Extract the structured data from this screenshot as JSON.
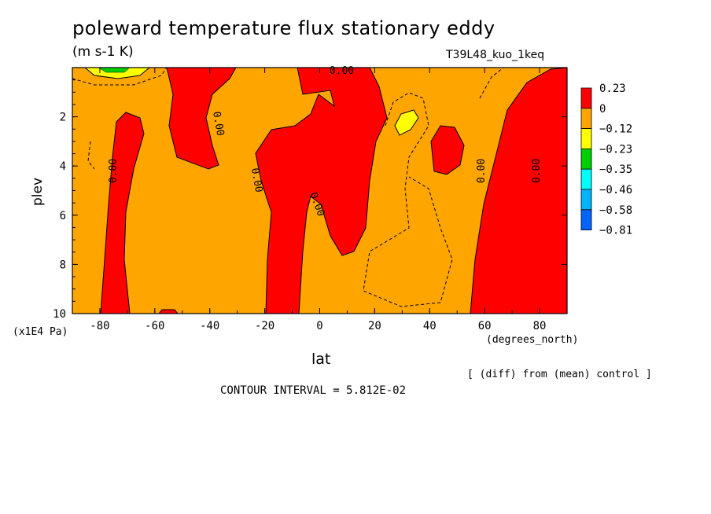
{
  "chart_data": {
    "type": "contour",
    "title": "poleward temperature flux stationary eddy",
    "units": "(m s-1 K)",
    "run_id": "T39L48_kuo_1keq",
    "xlabel": "lat",
    "xunit": "(degrees_north)",
    "ylabel": "plev",
    "yunit": "(x1E4 Pa)",
    "xlim": [
      -90,
      90
    ],
    "ylim": [
      10,
      0
    ],
    "x_ticks": [
      -80,
      -60,
      -40,
      -20,
      0,
      20,
      40,
      60,
      80
    ],
    "y_ticks": [
      2,
      4,
      6,
      8,
      10
    ],
    "legend_levels": [
      {
        "label": "0.23",
        "color": "#ff0000"
      },
      {
        "label": "0",
        "color": "#ffa500"
      },
      {
        "label": "−0.12",
        "color": "#ffff00"
      },
      {
        "label": "−0.23",
        "color": "#00d000"
      },
      {
        "label": "−0.35",
        "color": "#00ffff"
      },
      {
        "label": "−0.46",
        "color": "#00b4ff"
      },
      {
        "label": "−0.58",
        "color": "#0064ff"
      },
      {
        "label": "−0.81",
        "color": "#0000ff"
      }
    ],
    "contour_labels": [
      {
        "text": "0.00",
        "lat": -74,
        "plev": 4.2,
        "rot": -90
      },
      {
        "text": "0.00",
        "lat": -38,
        "plev": 2.3,
        "rot": 80
      },
      {
        "text": "0.00",
        "lat": -24,
        "plev": 4.6,
        "rot": 80
      },
      {
        "text": "0.00",
        "lat": -2,
        "plev": 5.6,
        "rot": 70
      },
      {
        "text": "0.00",
        "lat": 8,
        "plev": 0.25,
        "rot": 0
      },
      {
        "text": "0.00",
        "lat": 60,
        "plev": 4.2,
        "rot": -90
      },
      {
        "text": "0.00",
        "lat": 80,
        "plev": 4.2,
        "rot": -90
      }
    ],
    "contour_interval_text": "CONTOUR INTERVAL = 5.812E-02",
    "note": "[ (diff) from (mean) control ]"
  }
}
